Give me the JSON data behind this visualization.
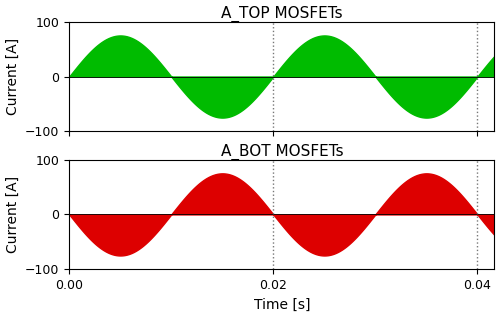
{
  "title_top": "A_TOP MOSFETs",
  "title_bot": "A_BOT MOSFETs",
  "xlabel": "Time [s]",
  "ylabel": "Current [A]",
  "xlim": [
    0.0,
    0.04167
  ],
  "ylim": [
    -100,
    100
  ],
  "yticks": [
    -100,
    0,
    100
  ],
  "xticks": [
    0.0,
    0.02,
    0.04
  ],
  "xticklabels": [
    "0.00",
    "0.02",
    "0.04"
  ],
  "amplitude": 75,
  "frequency": 50,
  "color_top": "#00BB00",
  "color_bot": "#DD0000",
  "vline_positions": [
    0.02,
    0.04
  ],
  "vline_style": "dotted",
  "vline_color": "#777777",
  "background_color": "#ffffff",
  "title_fontsize": 11,
  "label_fontsize": 10,
  "tick_fontsize": 9,
  "figsize": [
    5.0,
    3.17
  ],
  "dpi": 100
}
